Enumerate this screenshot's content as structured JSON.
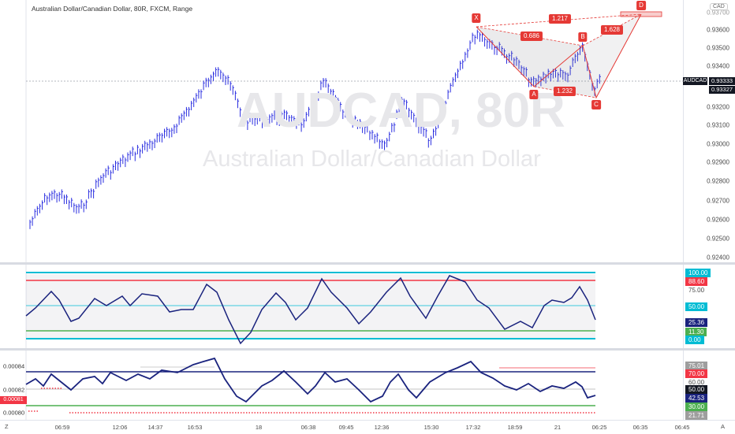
{
  "title": "Australian Dollar/Canadian Dollar, 80R, FXCM, Range",
  "watermark": {
    "symbol": "AUDCAD, 80R",
    "name": "Australian Dollar/Canadian Dollar"
  },
  "currency_badge": "CAD",
  "main_axis": {
    "ticks": [
      "0.93600",
      "0.93500",
      "0.93400",
      "0.93200",
      "0.93100",
      "0.93000",
      "0.92900",
      "0.92800",
      "0.92700",
      "0.92600",
      "0.92500",
      "0.92400"
    ],
    "top_partial": "0.93700",
    "symbol_tag": "AUDCAD",
    "last_price": "0.93333",
    "other_price": "0.93327"
  },
  "pattern": {
    "points": [
      "X",
      "A",
      "B",
      "C",
      "D"
    ],
    "ratios": [
      "0.686",
      "1.232",
      "1.628",
      "1.217"
    ]
  },
  "osc_axis": {
    "labels": [
      "100.00",
      "88.60",
      "75.00",
      "50.00",
      "25.36",
      "11.30",
      "0.00"
    ],
    "colors": {
      "100.00": "#00bcd4",
      "88.60": "#f23645",
      "75.00": "none",
      "50.00": "#00bcd4",
      "25.36": "#1a237e",
      "11.30": "#4caf50",
      "0.00": "#00bcd4"
    }
  },
  "rsi_axis": {
    "labels": [
      "75.01",
      "70.00",
      "60.00",
      "50.00",
      "42.53",
      "30.00",
      "21.71"
    ],
    "left_ticks": [
      "0.00084",
      "0.00082",
      "0.00080"
    ],
    "left_tag": "0.00081"
  },
  "time_axis": {
    "labels": [
      "06:59",
      "12:06",
      "14:37",
      "16:53",
      "18",
      "06:38",
      "09:45",
      "12:36",
      "15:30",
      "17:32",
      "18:59",
      "21",
      "06:25",
      "06:35",
      "06:45"
    ],
    "tz": "Z",
    "auto": "A"
  },
  "colors": {
    "bars": "#2a2ee0",
    "pattern": "#e53935",
    "osc_line": "#1a237e",
    "rsi_line": "#1a237e",
    "upper": "#00bcd4",
    "ob": "#f23645",
    "os": "#4caf50"
  }
}
